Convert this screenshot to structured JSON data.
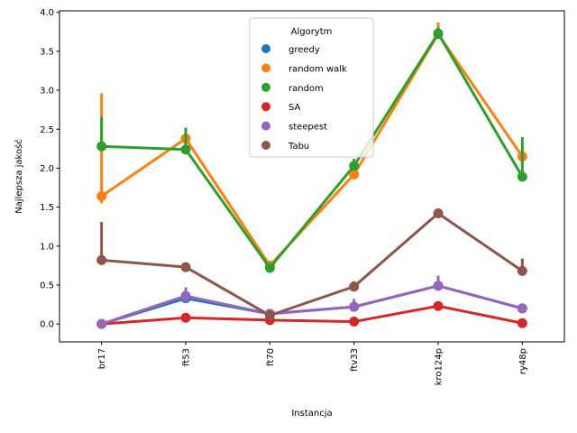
{
  "chart_data": {
    "type": "line",
    "xlabel": "Instancja",
    "ylabel": "Najlepsza jakość",
    "categories": [
      "br17",
      "ft53",
      "ft70",
      "ftv33",
      "kro124p",
      "ry48p"
    ],
    "ylim": [
      -0.23,
      4.02
    ],
    "yticks": [
      "0.0",
      "0.5",
      "1.0",
      "1.5",
      "2.0",
      "2.5",
      "3.0",
      "3.5",
      "4.0"
    ],
    "grid": false,
    "legend": {
      "title": "Algorytm",
      "placement": "top-center"
    },
    "series": [
      {
        "name": "greedy",
        "color": "#1f77b4",
        "values": [
          0.0,
          0.33,
          0.13,
          0.22,
          0.49,
          0.2
        ],
        "error_low": [
          0.0,
          0.33,
          0.13,
          0.22,
          0.49,
          0.2
        ],
        "error_high": [
          0.0,
          0.33,
          0.13,
          0.22,
          0.49,
          0.2
        ]
      },
      {
        "name": "random walk",
        "color": "#ff7f0e",
        "values": [
          1.64,
          2.38,
          0.75,
          1.92,
          3.72,
          2.15
        ],
        "error_low": [
          1.55,
          2.3,
          0.72,
          1.88,
          3.68,
          2.1
        ],
        "error_high": [
          2.96,
          2.42,
          0.78,
          1.97,
          3.87,
          2.2
        ]
      },
      {
        "name": "random",
        "color": "#2ca02c",
        "values": [
          2.28,
          2.24,
          0.72,
          2.03,
          3.73,
          1.89
        ],
        "error_low": [
          2.25,
          2.2,
          0.69,
          1.98,
          3.66,
          1.85
        ],
        "error_high": [
          2.66,
          2.52,
          0.76,
          2.12,
          3.81,
          2.4
        ]
      },
      {
        "name": "SA",
        "color": "#d62728",
        "values": [
          0.0,
          0.08,
          0.05,
          0.03,
          0.23,
          0.01
        ],
        "error_low": [
          0.0,
          0.06,
          0.04,
          0.02,
          0.2,
          0.0
        ],
        "error_high": [
          0.0,
          0.11,
          0.07,
          0.05,
          0.26,
          0.03
        ]
      },
      {
        "name": "steepest",
        "color": "#9467bd",
        "values": [
          0.0,
          0.36,
          0.13,
          0.22,
          0.49,
          0.2
        ],
        "error_low": [
          0.0,
          0.28,
          0.12,
          0.2,
          0.44,
          0.19
        ],
        "error_high": [
          0.0,
          0.47,
          0.14,
          0.32,
          0.62,
          0.22
        ]
      },
      {
        "name": "Tabu",
        "color": "#8c564b",
        "values": [
          0.82,
          0.73,
          0.11,
          0.48,
          1.42,
          0.68
        ],
        "error_low": [
          0.81,
          0.72,
          0.1,
          0.44,
          1.41,
          0.63
        ],
        "error_high": [
          1.31,
          0.74,
          0.12,
          0.55,
          1.44,
          0.84
        ]
      }
    ]
  }
}
